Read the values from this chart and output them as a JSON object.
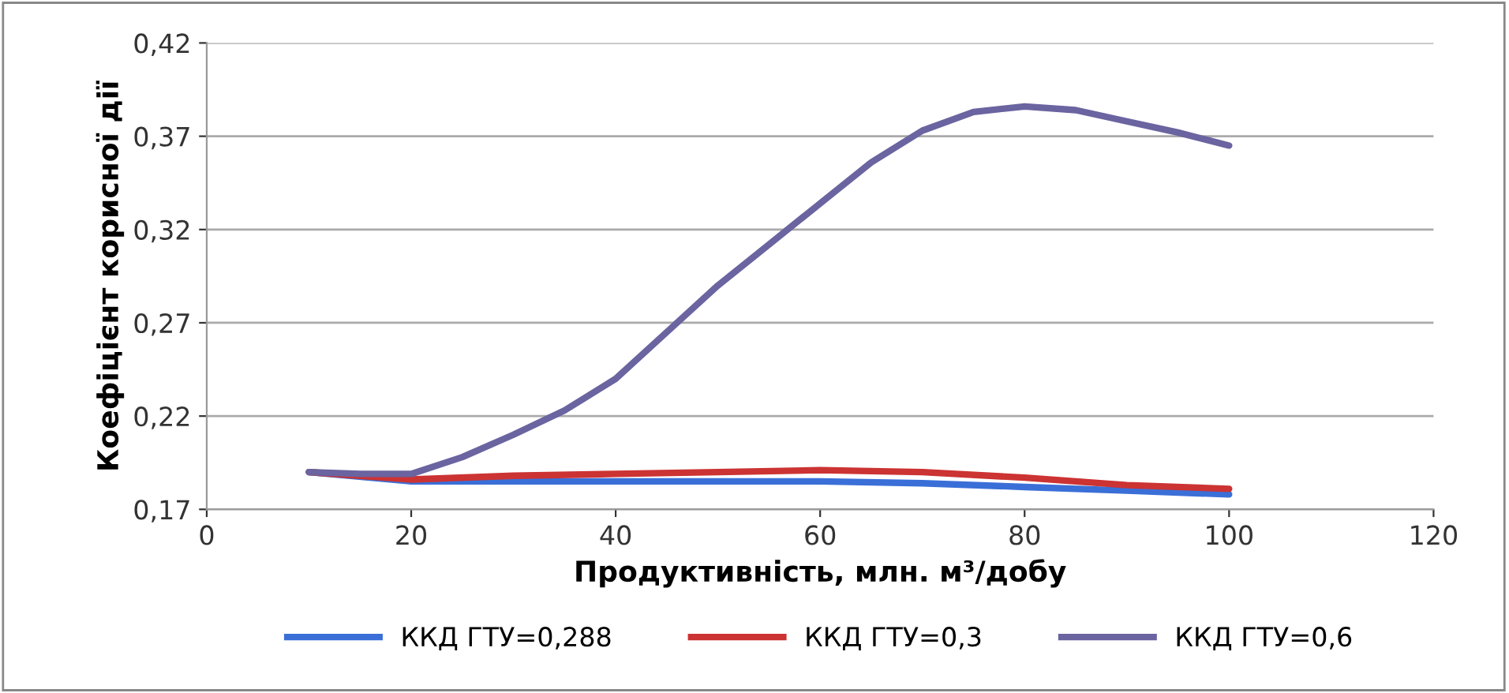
{
  "chart_data": {
    "type": "line",
    "xlabel": "Продуктивність, млн. м³/добу",
    "ylabel": "Коефіцієнт корисної дії",
    "xlim": [
      0,
      120
    ],
    "xticks": [
      0,
      20,
      40,
      60,
      80,
      100,
      120
    ],
    "ylim": [
      0.17,
      0.42
    ],
    "yticks": [
      {
        "value": 0.17,
        "label": "0,17"
      },
      {
        "value": 0.22,
        "label": "0,22"
      },
      {
        "value": 0.27,
        "label": "0,27"
      },
      {
        "value": 0.32,
        "label": "0,32"
      },
      {
        "value": 0.37,
        "label": "0,37"
      },
      {
        "value": 0.42,
        "label": "0,42"
      }
    ],
    "grid": "y",
    "legend": "bottom",
    "marker": "none",
    "line_style": "solid",
    "x": [
      10,
      20,
      30,
      40,
      50,
      60,
      70,
      80,
      90,
      100
    ],
    "series": [
      {
        "name": "ККД ГТУ=0,288",
        "color": "#3a6fd8",
        "values": [
          0.19,
          0.185,
          0.185,
          0.185,
          0.185,
          0.185,
          0.184,
          0.182,
          0.18,
          0.178
        ]
      },
      {
        "name": "ККД ГТУ=0,3",
        "color": "#cc3333",
        "values": [
          0.19,
          0.186,
          0.188,
          0.189,
          0.19,
          0.191,
          0.19,
          0.187,
          0.183,
          0.181
        ]
      },
      {
        "name": "ККД ГТУ=0,6",
        "color": "#6a64a0",
        "x": [
          10,
          15,
          20,
          25,
          30,
          35,
          40,
          45,
          50,
          55,
          60,
          65,
          70,
          75,
          80,
          85,
          90,
          95,
          100
        ],
        "values": [
          0.19,
          0.189,
          0.189,
          0.198,
          0.21,
          0.223,
          0.24,
          0.265,
          0.29,
          0.312,
          0.334,
          0.356,
          0.373,
          0.383,
          0.386,
          0.384,
          0.378,
          0.372,
          0.365
        ]
      }
    ]
  }
}
